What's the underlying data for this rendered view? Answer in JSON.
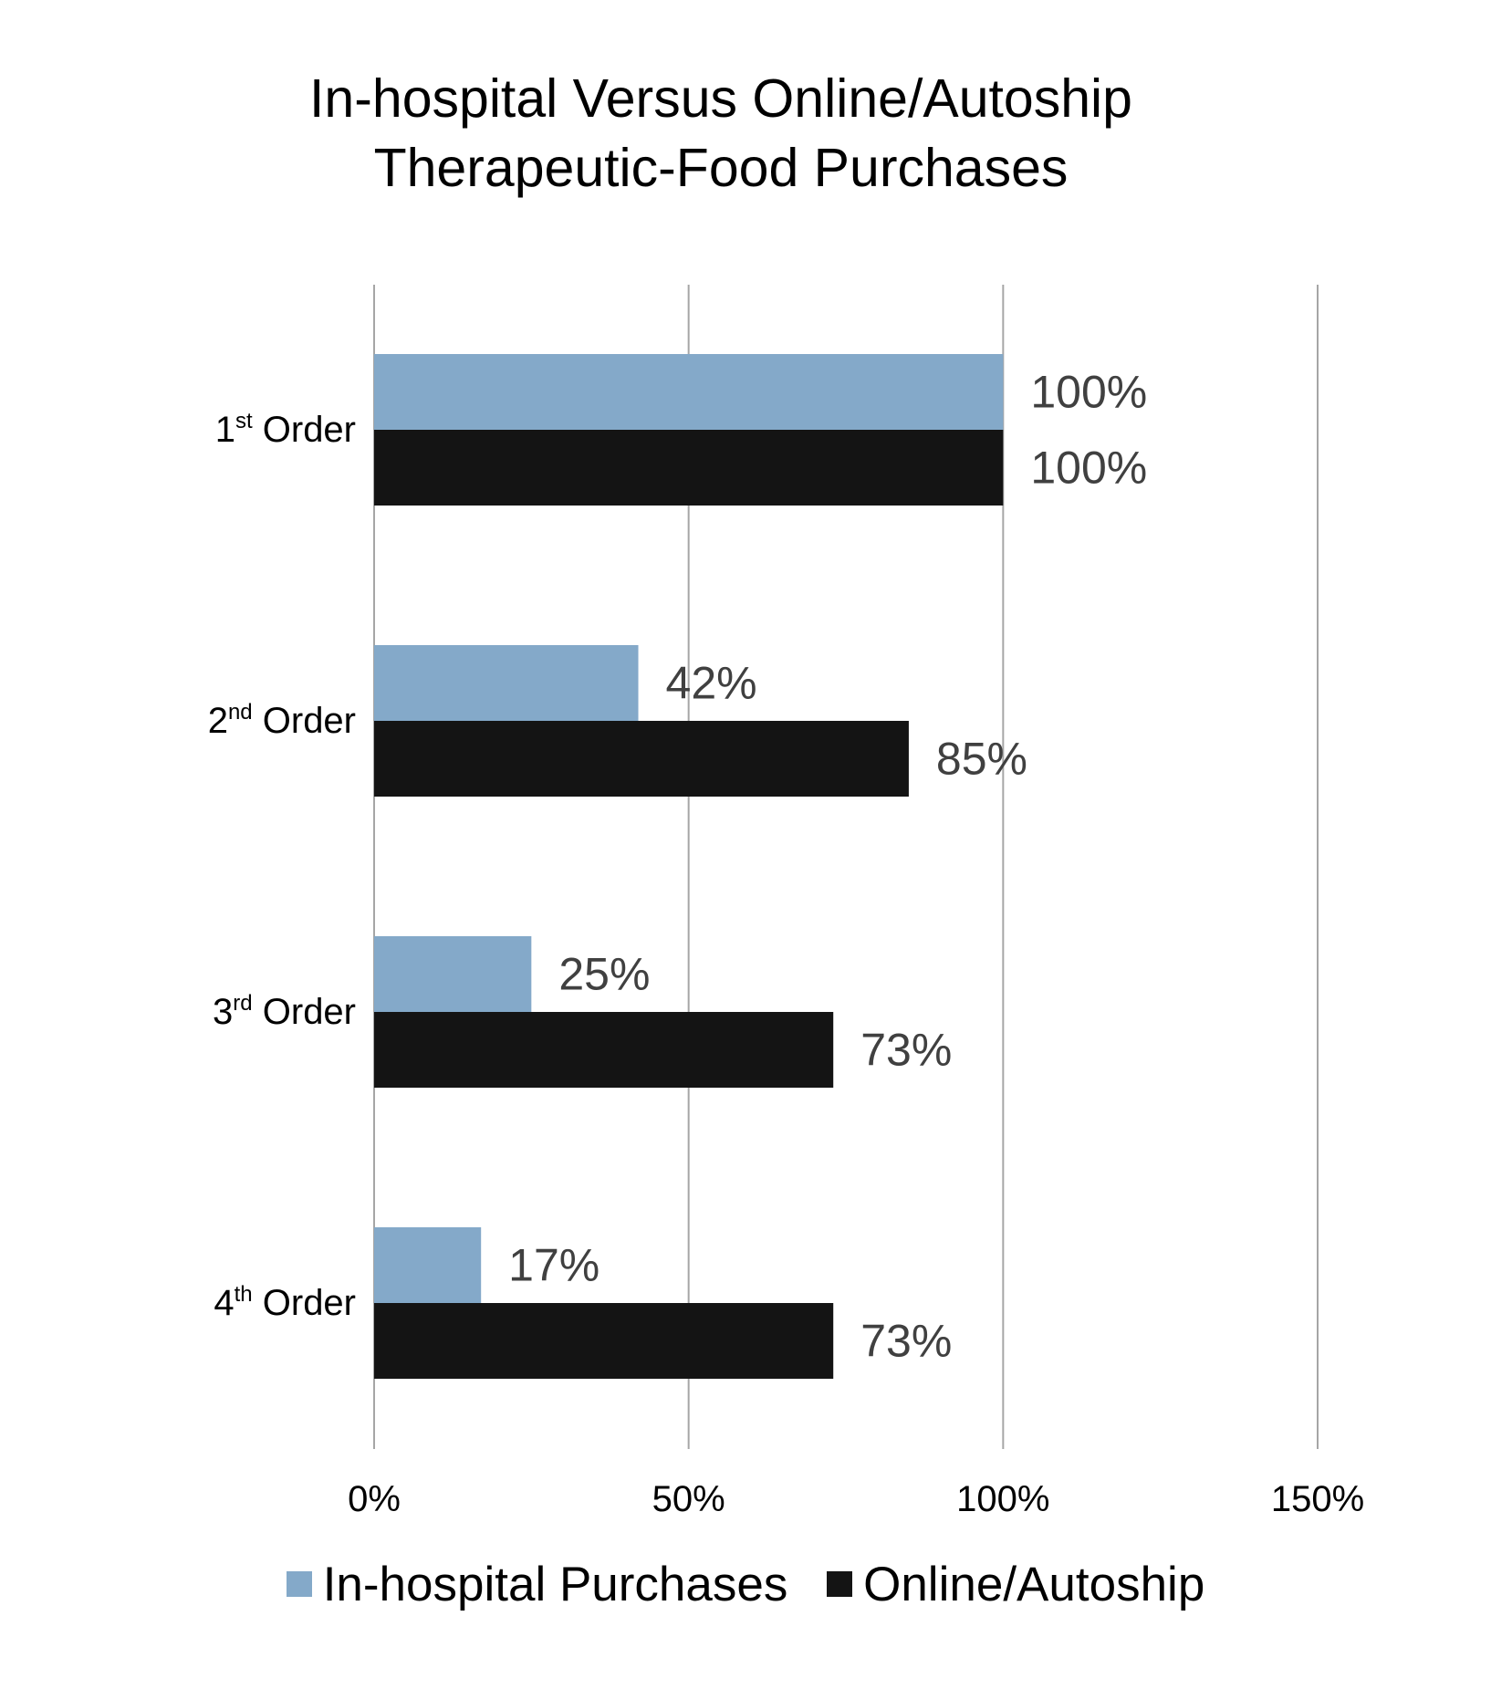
{
  "chart_data": {
    "type": "bar",
    "orientation": "horizontal",
    "title_lines": [
      "In-hospital Versus Online/Autoship",
      "Therapeutic-Food Purchases"
    ],
    "categories": [
      {
        "label": "1",
        "suffix": "st",
        "rest": " Order"
      },
      {
        "label": "2",
        "suffix": "nd",
        "rest": " Order"
      },
      {
        "label": "3",
        "suffix": "rd",
        "rest": " Order"
      },
      {
        "label": "4",
        "suffix": "th",
        "rest": " Order"
      }
    ],
    "series": [
      {
        "name": "In-hospital Purchases",
        "color": "#84a9c9",
        "values": [
          100,
          42,
          25,
          17
        ],
        "labels": [
          "100%",
          "42%",
          "25%",
          "17%"
        ]
      },
      {
        "name": "Online/Autoship",
        "color": "#141414",
        "values": [
          100,
          85,
          73,
          73
        ],
        "labels": [
          "100%",
          "85%",
          "73%",
          "73%"
        ]
      }
    ],
    "xlim": [
      0,
      150
    ],
    "xticks": [
      {
        "value": 0,
        "label": "0%"
      },
      {
        "value": 50,
        "label": "50%"
      },
      {
        "value": 100,
        "label": "100%"
      },
      {
        "value": 150,
        "label": "150%"
      }
    ],
    "grid": true,
    "legend_position": "bottom"
  }
}
